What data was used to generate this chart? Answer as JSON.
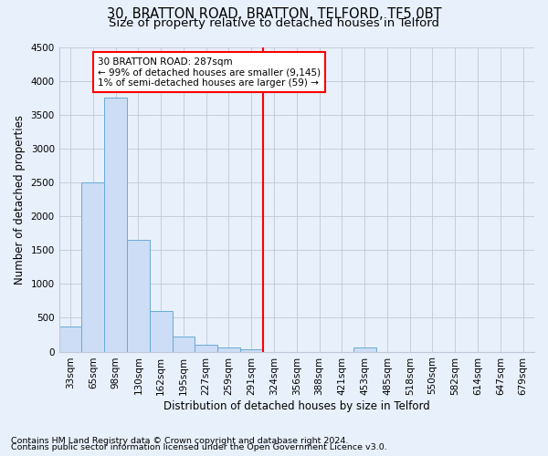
{
  "title1": "30, BRATTON ROAD, BRATTON, TELFORD, TF5 0BT",
  "title2": "Size of property relative to detached houses in Telford",
  "xlabel": "Distribution of detached houses by size in Telford",
  "ylabel": "Number of detached properties",
  "footnote1": "Contains HM Land Registry data © Crown copyright and database right 2024.",
  "footnote2": "Contains public sector information licensed under the Open Government Licence v3.0.",
  "bar_labels": [
    "33sqm",
    "65sqm",
    "98sqm",
    "130sqm",
    "162sqm",
    "195sqm",
    "227sqm",
    "259sqm",
    "291sqm",
    "324sqm",
    "356sqm",
    "388sqm",
    "421sqm",
    "453sqm",
    "485sqm",
    "518sqm",
    "550sqm",
    "582sqm",
    "614sqm",
    "647sqm",
    "679sqm"
  ],
  "bar_values": [
    370,
    2500,
    3750,
    1650,
    600,
    220,
    105,
    60,
    40,
    0,
    0,
    0,
    0,
    60,
    0,
    0,
    0,
    0,
    0,
    0,
    0
  ],
  "bar_color": "#ccddf5",
  "bar_edge_color": "#6aaad4",
  "vline_x_bin": 8,
  "vline_color": "red",
  "annotation_line1": "30 BRATTON ROAD: 287sqm",
  "annotation_line2": "← 99% of detached houses are smaller (9,145)",
  "annotation_line3": "1% of semi-detached houses are larger (59) →",
  "annotation_box_color": "white",
  "annotation_box_edge": "red",
  "ylim": [
    0,
    4500
  ],
  "yticks": [
    0,
    500,
    1000,
    1500,
    2000,
    2500,
    3000,
    3500,
    4000,
    4500
  ],
  "bg_color": "#e8f0fb",
  "grid_color": "#c0c8d8",
  "title1_fontsize": 10.5,
  "title2_fontsize": 9.5,
  "ylabel_fontsize": 8.5,
  "xlabel_fontsize": 8.5,
  "tick_fontsize": 7.5,
  "annotation_fontsize": 7.5,
  "footnote_fontsize": 6.8
}
